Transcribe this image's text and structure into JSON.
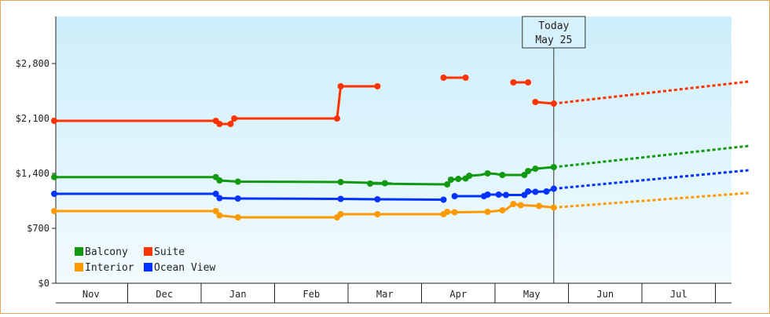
{
  "chart_data": {
    "type": "line",
    "title": "",
    "xlabel": "",
    "ylabel": "",
    "ylim": [
      0,
      3400
    ],
    "y_ticks": [
      {
        "value": 0,
        "label": "$0"
      },
      {
        "value": 700,
        "label": "$700"
      },
      {
        "value": 1400,
        "label": "$1,400"
      },
      {
        "value": 2100,
        "label": "$2,100"
      },
      {
        "value": 2800,
        "label": "$2,800"
      }
    ],
    "months": [
      "Nov",
      "Dec",
      "Jan",
      "Feb",
      "Mar",
      "Apr",
      "May",
      "Jun",
      "Jul"
    ],
    "today": {
      "line1": "Today",
      "line2": "May 25",
      "x": 6.8
    },
    "legend": {
      "placement": "bottom-left"
    },
    "series": [
      {
        "name": "Balcony",
        "color": "#119911",
        "segments": [
          [
            [
              0.0,
              1353
            ],
            [
              2.2,
              1353
            ],
            [
              2.25,
              1310
            ],
            [
              2.5,
              1295
            ],
            [
              3.9,
              1290
            ],
            [
              4.5,
              1275
            ],
            [
              4.6,
              1270
            ],
            [
              4.3,
              1270
            ],
            [
              5.35,
              1260
            ],
            [
              5.4,
              1320
            ],
            [
              5.5,
              1330
            ],
            [
              5.6,
              1335
            ],
            [
              5.65,
              1370
            ],
            [
              5.8,
              1380
            ],
            [
              5.9,
              1400
            ],
            [
              6.0,
              1395
            ],
            [
              6.1,
              1380
            ],
            [
              6.2,
              1380
            ],
            [
              6.4,
              1380
            ],
            [
              6.45,
              1430
            ],
            [
              6.55,
              1460
            ],
            [
              6.8,
              1480
            ]
          ]
        ],
        "markers": [
          [
            0.0,
            1353
          ],
          [
            2.2,
            1353
          ],
          [
            2.25,
            1310
          ],
          [
            2.5,
            1295
          ],
          [
            3.9,
            1290
          ],
          [
            4.3,
            1270
          ],
          [
            4.5,
            1275
          ],
          [
            5.35,
            1260
          ],
          [
            5.4,
            1320
          ],
          [
            5.5,
            1330
          ],
          [
            5.6,
            1335
          ],
          [
            5.65,
            1370
          ],
          [
            5.9,
            1400
          ],
          [
            6.1,
            1380
          ],
          [
            6.4,
            1380
          ],
          [
            6.45,
            1430
          ],
          [
            6.55,
            1460
          ],
          [
            6.8,
            1480
          ]
        ],
        "forecast": [
          [
            6.8,
            1480
          ],
          [
            9.45,
            1750
          ]
        ]
      },
      {
        "name": "Suite",
        "color": "#ff3300",
        "segments": [
          [
            [
              0.0,
              2070
            ],
            [
              2.2,
              2070
            ],
            [
              2.25,
              2030
            ],
            [
              2.4,
              2030
            ],
            [
              2.45,
              2100
            ],
            [
              3.85,
              2100
            ],
            [
              3.9,
              2510
            ],
            [
              4.4,
              2510
            ]
          ],
          [
            [
              5.3,
              2620
            ],
            [
              5.6,
              2620
            ]
          ],
          [
            [
              6.25,
              2560
            ],
            [
              6.45,
              2560
            ]
          ],
          [
            [
              6.55,
              2310
            ],
            [
              6.8,
              2290
            ]
          ]
        ],
        "markers": [
          [
            0.0,
            2070
          ],
          [
            2.2,
            2070
          ],
          [
            2.25,
            2030
          ],
          [
            2.4,
            2030
          ],
          [
            2.45,
            2100
          ],
          [
            3.85,
            2100
          ],
          [
            3.9,
            2510
          ],
          [
            4.4,
            2510
          ],
          [
            5.3,
            2620
          ],
          [
            5.6,
            2620
          ],
          [
            6.25,
            2560
          ],
          [
            6.45,
            2560
          ],
          [
            6.55,
            2310
          ],
          [
            6.8,
            2290
          ]
        ],
        "forecast": [
          [
            6.8,
            2290
          ],
          [
            9.45,
            2570
          ]
        ]
      },
      {
        "name": "Ocean View",
        "color": "#0033ff",
        "segments": [
          [
            [
              0.0,
              1140
            ],
            [
              2.2,
              1140
            ],
            [
              2.25,
              1085
            ],
            [
              2.5,
              1080
            ],
            [
              3.9,
              1075
            ],
            [
              4.4,
              1070
            ],
            [
              5.3,
              1065
            ]
          ],
          [
            [
              5.45,
              1110
            ],
            [
              5.85,
              1110
            ],
            [
              5.9,
              1130
            ],
            [
              6.05,
              1130
            ],
            [
              6.15,
              1125
            ],
            [
              6.4,
              1125
            ],
            [
              6.45,
              1170
            ],
            [
              6.55,
              1165
            ],
            [
              6.7,
              1170
            ],
            [
              6.8,
              1205
            ]
          ]
        ],
        "markers": [
          [
            0.0,
            1140
          ],
          [
            2.2,
            1140
          ],
          [
            2.25,
            1085
          ],
          [
            2.5,
            1080
          ],
          [
            3.9,
            1075
          ],
          [
            4.4,
            1070
          ],
          [
            5.3,
            1065
          ],
          [
            5.45,
            1110
          ],
          [
            5.85,
            1110
          ],
          [
            5.9,
            1130
          ],
          [
            6.05,
            1130
          ],
          [
            6.15,
            1125
          ],
          [
            6.4,
            1125
          ],
          [
            6.45,
            1170
          ],
          [
            6.55,
            1165
          ],
          [
            6.7,
            1170
          ],
          [
            6.8,
            1205
          ]
        ],
        "forecast": [
          [
            6.8,
            1205
          ],
          [
            9.45,
            1440
          ]
        ]
      },
      {
        "name": "Interior",
        "color": "#ff9900",
        "segments": [
          [
            [
              0.0,
              920
            ],
            [
              2.2,
              920
            ],
            [
              2.25,
              865
            ],
            [
              2.5,
              840
            ],
            [
              3.85,
              840
            ],
            [
              3.9,
              880
            ],
            [
              4.4,
              880
            ],
            [
              5.3,
              880
            ],
            [
              5.35,
              910
            ],
            [
              5.45,
              905
            ],
            [
              5.9,
              910
            ],
            [
              6.1,
              930
            ],
            [
              6.15,
              940
            ],
            [
              6.25,
              1010
            ],
            [
              6.35,
              995
            ],
            [
              6.6,
              985
            ],
            [
              6.8,
              965
            ]
          ]
        ],
        "markers": [
          [
            0.0,
            920
          ],
          [
            2.2,
            920
          ],
          [
            2.25,
            865
          ],
          [
            2.5,
            840
          ],
          [
            3.85,
            840
          ],
          [
            3.9,
            880
          ],
          [
            4.4,
            880
          ],
          [
            5.3,
            880
          ],
          [
            5.35,
            910
          ],
          [
            5.45,
            905
          ],
          [
            5.9,
            910
          ],
          [
            6.1,
            930
          ],
          [
            6.25,
            1010
          ],
          [
            6.35,
            995
          ],
          [
            6.6,
            985
          ],
          [
            6.8,
            965
          ]
        ],
        "forecast": [
          [
            6.8,
            965
          ],
          [
            9.45,
            1150
          ]
        ]
      }
    ]
  }
}
